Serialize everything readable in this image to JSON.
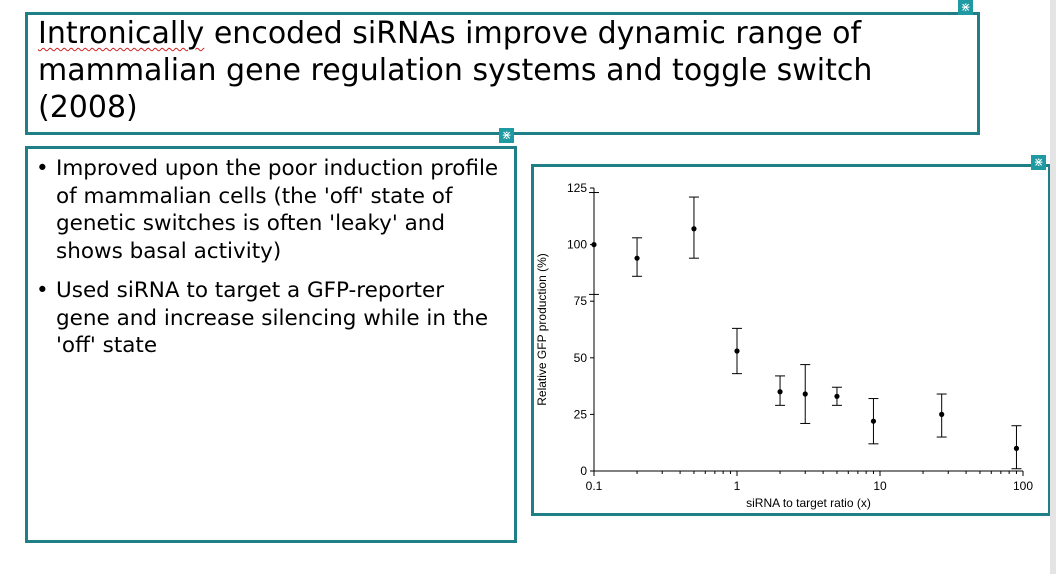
{
  "slide": {
    "title_parts": [
      "Intronically",
      " encoded siRNAs improve dynamic range of mammalian gene regulation systems and toggle switch (2008)"
    ],
    "bullets": [
      "Improved upon the poor induction profile of mammalian cells (the 'off' state of genetic switches is often 'leaky' and shows basal activity)",
      "Used siRNA to target a GFP-reporter gene and increase silencing while in the 'off' state"
    ],
    "handle_glyph": "⋇"
  },
  "chart_data": {
    "type": "scatter",
    "xscale": "log",
    "xlim": [
      0.1,
      100
    ],
    "ylim": [
      0,
      125
    ],
    "xticks": [
      {
        "value": 0.1,
        "label": "0.1"
      },
      {
        "value": 1,
        "label": "1"
      },
      {
        "value": 10,
        "label": "10"
      },
      {
        "value": 100,
        "label": "100"
      }
    ],
    "yticks": [
      {
        "value": 0,
        "label": "0"
      },
      {
        "value": 25,
        "label": "25"
      },
      {
        "value": 50,
        "label": "50"
      },
      {
        "value": 75,
        "label": "75"
      },
      {
        "value": 100,
        "label": "100"
      },
      {
        "value": 125,
        "label": "125"
      }
    ],
    "xlabel": "siRNA to target ratio (x)",
    "ylabel": "Relative GFP production (%)",
    "points": [
      {
        "x": 0.1,
        "y": 100,
        "lo": 78,
        "hi": 123
      },
      {
        "x": 0.2,
        "y": 94,
        "lo": 86,
        "hi": 103
      },
      {
        "x": 0.5,
        "y": 107,
        "lo": 94,
        "hi": 121
      },
      {
        "x": 1,
        "y": 53,
        "lo": 43,
        "hi": 63
      },
      {
        "x": 2,
        "y": 35,
        "lo": 29,
        "hi": 42
      },
      {
        "x": 3,
        "y": 34,
        "lo": 21,
        "hi": 47
      },
      {
        "x": 5,
        "y": 33,
        "lo": 29,
        "hi": 37
      },
      {
        "x": 9,
        "y": 22,
        "lo": 12,
        "hi": 32
      },
      {
        "x": 27,
        "y": 25,
        "lo": 15,
        "hi": 34
      },
      {
        "x": 90,
        "y": 10,
        "lo": 1,
        "hi": 20
      }
    ]
  }
}
